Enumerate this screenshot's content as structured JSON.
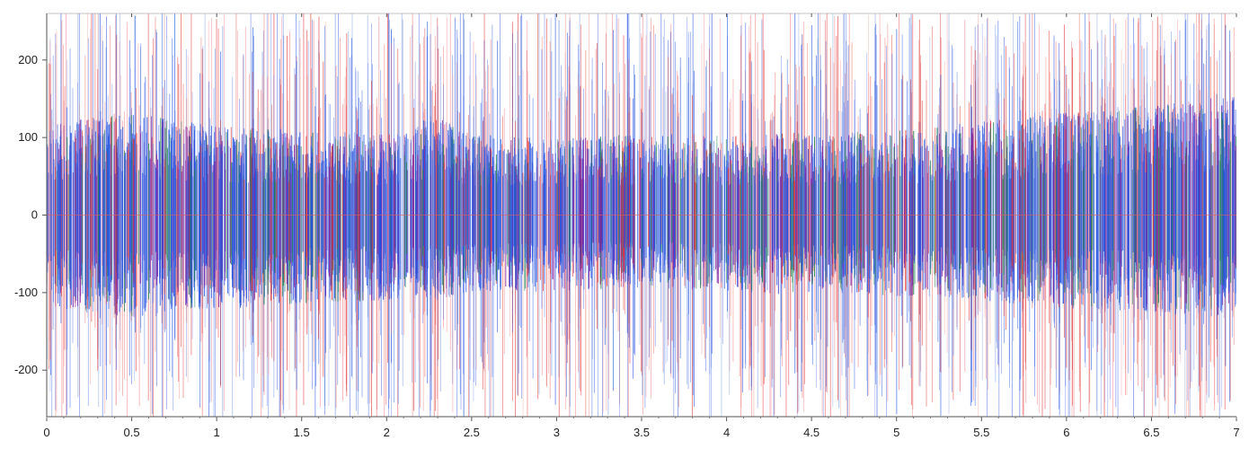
{
  "chart_data": {
    "type": "line",
    "title": "",
    "xlabel": "",
    "ylabel": "",
    "xlim": [
      0,
      7
    ],
    "ylim": [
      -260,
      260
    ],
    "x_ticks": [
      {
        "value": 0,
        "label": "0"
      },
      {
        "value": 0.5,
        "label": "0.5"
      },
      {
        "value": 1,
        "label": "1"
      },
      {
        "value": 1.5,
        "label": "1.5"
      },
      {
        "value": 2,
        "label": "2"
      },
      {
        "value": 2.5,
        "label": "2.5"
      },
      {
        "value": 3,
        "label": "3"
      },
      {
        "value": 3.5,
        "label": "3.5"
      },
      {
        "value": 4,
        "label": "4"
      },
      {
        "value": 4.5,
        "label": "4.5"
      },
      {
        "value": 5,
        "label": "5"
      },
      {
        "value": 5.5,
        "label": "5.5"
      },
      {
        "value": 6,
        "label": "6"
      },
      {
        "value": 6.5,
        "label": "6.5"
      },
      {
        "value": 7,
        "label": "7"
      }
    ],
    "y_ticks": [
      {
        "value": 200,
        "label": "200"
      },
      {
        "value": 100,
        "label": "100"
      },
      {
        "value": 0,
        "label": "0"
      },
      {
        "value": -100,
        "label": "-100"
      },
      {
        "value": -200,
        "label": "-200"
      }
    ],
    "grid": false,
    "legend": "none",
    "series_colors": [
      "#e03030",
      "#f08080",
      "#2050e0",
      "#5a7ae0",
      "#8020a0",
      "#208050"
    ],
    "envelope": {
      "x": [
        0,
        0.5,
        1,
        1.5,
        2,
        2.2,
        2.3,
        2.5,
        3,
        3.5,
        4,
        4.3,
        4.5,
        5,
        5.5,
        6,
        6.5,
        7
      ],
      "core_upper": [
        110,
        120,
        105,
        100,
        95,
        110,
        115,
        95,
        90,
        95,
        95,
        100,
        95,
        100,
        110,
        120,
        130,
        140
      ],
      "core_lower": [
        -110,
        -120,
        -110,
        -105,
        -100,
        -95,
        -100,
        -90,
        -90,
        -85,
        -90,
        -95,
        -90,
        -95,
        -100,
        -110,
        -115,
        -120
      ]
    }
  }
}
